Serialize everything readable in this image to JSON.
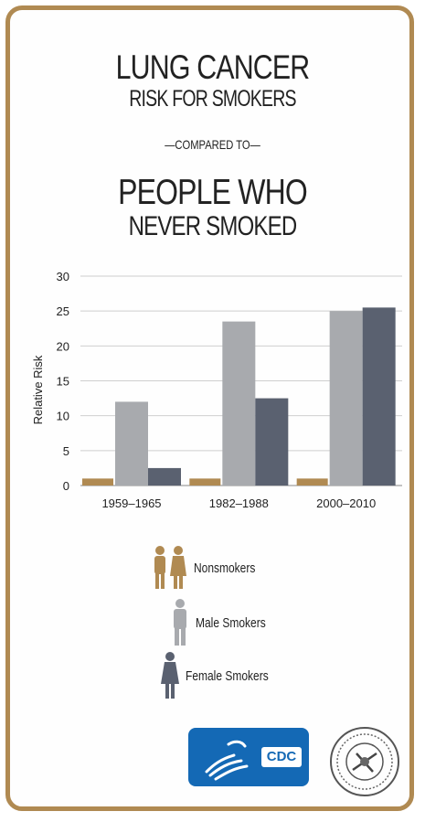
{
  "title": {
    "line1": "LUNG CANCER",
    "line2": "RISK FOR SMOKERS",
    "line3": "—COMPARED TO—",
    "line4": "PEOPLE WHO",
    "line5": "NEVER SMOKED"
  },
  "chart_data": {
    "type": "bar",
    "categories": [
      "1959–1965",
      "1982–1988",
      "2000–2010"
    ],
    "series": [
      {
        "name": "Nonsmokers",
        "values": [
          1,
          1,
          1
        ],
        "color": "#b08a52"
      },
      {
        "name": "Male Smokers",
        "values": [
          12,
          23.5,
          25
        ],
        "color": "#a8aaae"
      },
      {
        "name": "Female Smokers",
        "values": [
          2.5,
          12.5,
          25.5
        ],
        "color": "#5a6170"
      }
    ],
    "ylabel": "Relative Risk",
    "ylim": [
      0,
      30
    ],
    "yticks": [
      "0",
      "5",
      "10",
      "15",
      "20",
      "25",
      "30"
    ],
    "grid": true
  },
  "legend": {
    "nonsmokers": "Nonsmokers",
    "male": "Male Smokers",
    "female": "Female Smokers"
  },
  "logos": {
    "cdc": "CDC"
  },
  "colors": {
    "border": "#b08a52",
    "cdc_blue": "#1469b5"
  }
}
